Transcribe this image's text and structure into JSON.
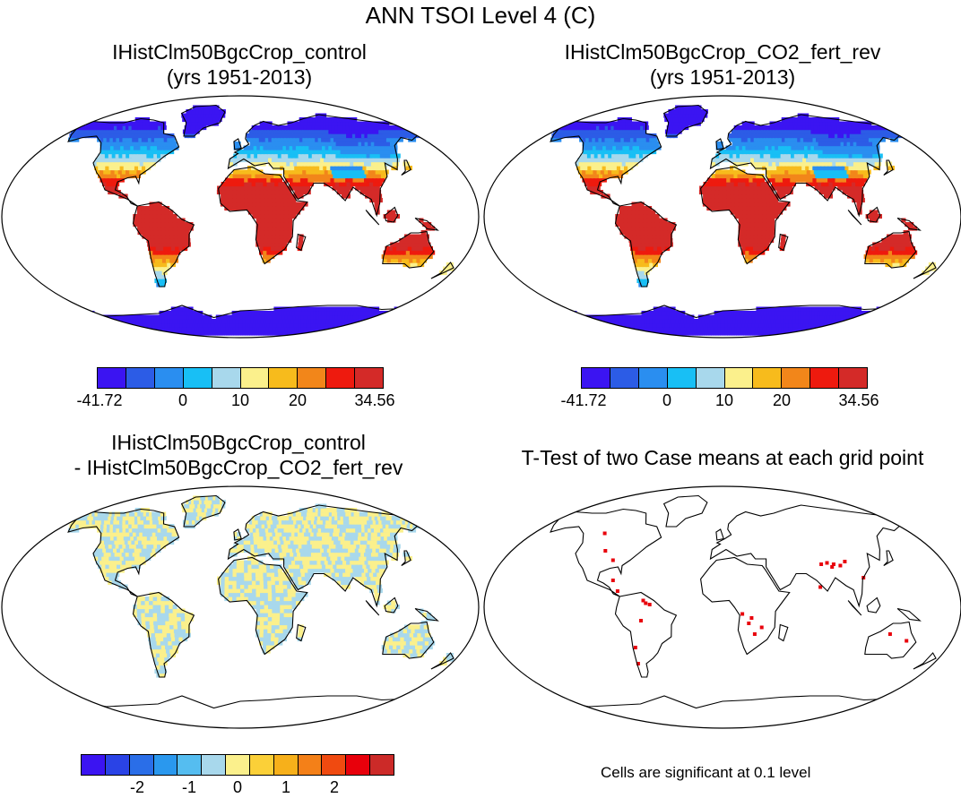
{
  "figure": {
    "title": "ANN TSOI Level 4 (C)"
  },
  "panels": [
    {
      "title_line1": "IHistClm50BgcCrop_control",
      "title_line2": "(yrs 1951-2013)",
      "kind": "absolute"
    },
    {
      "title_line1": "IHistClm50BgcCrop_CO2_fert_rev",
      "title_line2": "(yrs 1951-2013)",
      "kind": "absolute"
    },
    {
      "title_line1": "IHistClm50BgcCrop_control",
      "title_line2": "- IHistClm50BgcCrop_CO2_fert_rev",
      "kind": "difference"
    },
    {
      "title_line1": "T-Test of two Case means at each grid point",
      "title_line2": "",
      "kind": "ttest",
      "note": "Cells are significant at 0.1 level",
      "significant_color": "#e8000b"
    }
  ],
  "colorbar_absolute": {
    "colors": [
      "#3b14f2",
      "#2c5ce6",
      "#2a8ef0",
      "#18bff5",
      "#a8d8ec",
      "#fbf08c",
      "#f7bb1c",
      "#f2861a",
      "#ee1a0e",
      "#d42a28"
    ],
    "tick_labels": [
      "-41.72",
      "0",
      "10",
      "20",
      "34.56"
    ]
  },
  "colorbar_diff": {
    "colors": [
      "#3b14f2",
      "#2a43e6",
      "#2a6ee8",
      "#2a98ee",
      "#55bdf0",
      "#a8d8ec",
      "#fbf08c",
      "#fbd038",
      "#f7b01a",
      "#f48018",
      "#f04a10",
      "#e8000b",
      "#cc2a28"
    ],
    "tick_labels": [
      "-2",
      "-1",
      "0",
      "1",
      "2"
    ]
  }
}
